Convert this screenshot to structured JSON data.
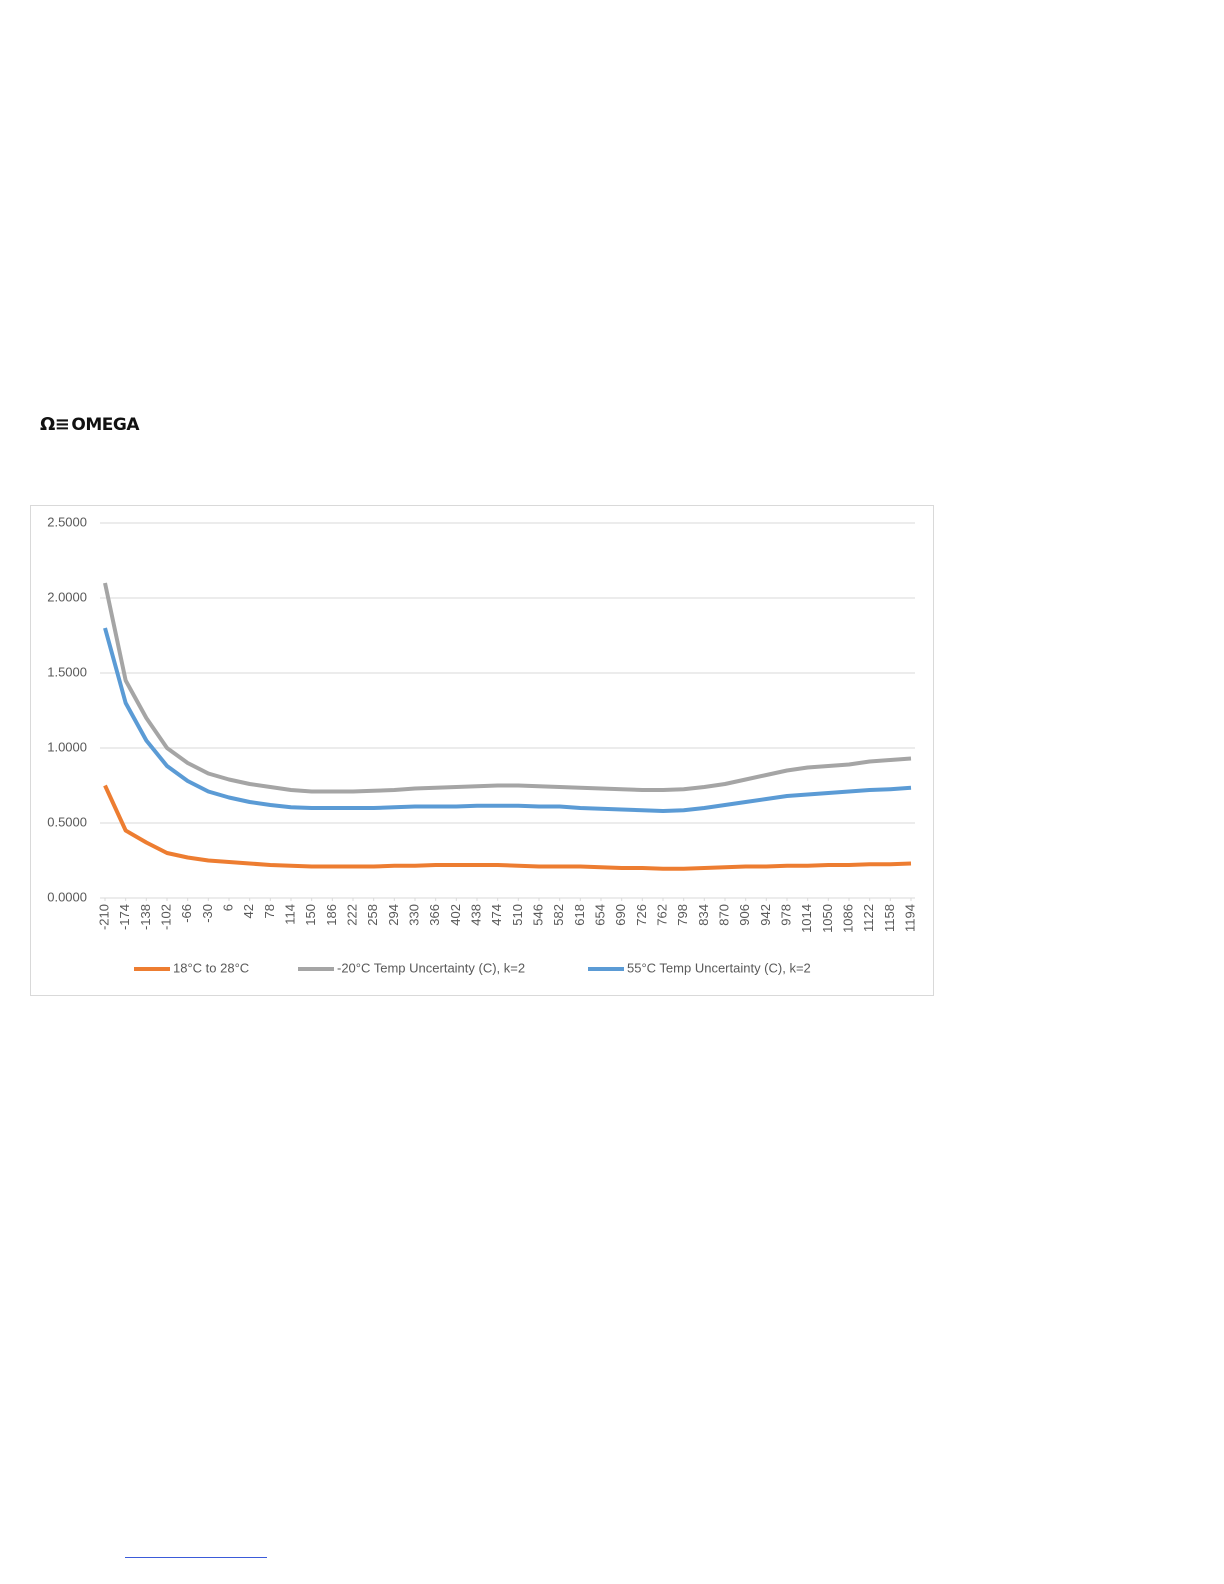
{
  "logo": "OMEGA",
  "chart_data": {
    "type": "line",
    "x": [
      -210,
      -174,
      -138,
      -102,
      -66,
      -30,
      6,
      42,
      78,
      114,
      150,
      186,
      222,
      258,
      294,
      330,
      366,
      402,
      438,
      474,
      510,
      546,
      582,
      618,
      654,
      690,
      726,
      762,
      798,
      834,
      870,
      906,
      942,
      978,
      1014,
      1050,
      1086,
      1122,
      1158,
      1194
    ],
    "series": [
      {
        "name": "18°C to 28°C",
        "color": "#ed7d31",
        "values": [
          0.75,
          0.45,
          0.37,
          0.3,
          0.27,
          0.25,
          0.24,
          0.23,
          0.22,
          0.215,
          0.21,
          0.21,
          0.21,
          0.21,
          0.215,
          0.215,
          0.22,
          0.22,
          0.22,
          0.22,
          0.215,
          0.21,
          0.21,
          0.21,
          0.205,
          0.2,
          0.2,
          0.195,
          0.195,
          0.2,
          0.205,
          0.21,
          0.21,
          0.215,
          0.215,
          0.22,
          0.22,
          0.225,
          0.225,
          0.23
        ]
      },
      {
        "name": "-20°C Temp Uncertainty (C), k=2",
        "color": "#a5a5a5",
        "values": [
          2.1,
          1.45,
          1.2,
          1.0,
          0.9,
          0.83,
          0.79,
          0.76,
          0.74,
          0.72,
          0.71,
          0.71,
          0.71,
          0.715,
          0.72,
          0.73,
          0.735,
          0.74,
          0.745,
          0.75,
          0.75,
          0.745,
          0.74,
          0.735,
          0.73,
          0.725,
          0.72,
          0.72,
          0.725,
          0.74,
          0.76,
          0.79,
          0.82,
          0.85,
          0.87,
          0.88,
          0.89,
          0.91,
          0.92,
          0.93
        ]
      },
      {
        "name": "55°C Temp Uncertainty (C), k=2",
        "color": "#5b9bd5",
        "values": [
          1.8,
          1.3,
          1.05,
          0.88,
          0.78,
          0.71,
          0.67,
          0.64,
          0.62,
          0.605,
          0.6,
          0.6,
          0.6,
          0.6,
          0.605,
          0.61,
          0.61,
          0.61,
          0.615,
          0.615,
          0.615,
          0.61,
          0.61,
          0.6,
          0.595,
          0.59,
          0.585,
          0.58,
          0.585,
          0.6,
          0.62,
          0.64,
          0.66,
          0.68,
          0.69,
          0.7,
          0.71,
          0.72,
          0.725,
          0.735
        ]
      }
    ],
    "xlim": [
      -210,
      1194
    ],
    "xticks": [
      -210,
      -174,
      -138,
      -102,
      -66,
      -30,
      6,
      42,
      78,
      114,
      150,
      186,
      222,
      258,
      294,
      330,
      366,
      402,
      438,
      474,
      510,
      546,
      582,
      618,
      654,
      690,
      726,
      762,
      798,
      834,
      870,
      906,
      942,
      978,
      1014,
      1050,
      1086,
      1122,
      1158,
      1194
    ],
    "ylim": [
      0,
      2.5
    ],
    "yticks": [
      {
        "value": 0,
        "label": "0.0000"
      },
      {
        "value": 0.5,
        "label": "0.5000"
      },
      {
        "value": 1,
        "label": "1.0000"
      },
      {
        "value": 1.5,
        "label": "1.5000"
      },
      {
        "value": 2,
        "label": "2.0000"
      },
      {
        "value": 2.5,
        "label": "2.5000"
      }
    ],
    "grid": true,
    "legend": "bottom"
  }
}
